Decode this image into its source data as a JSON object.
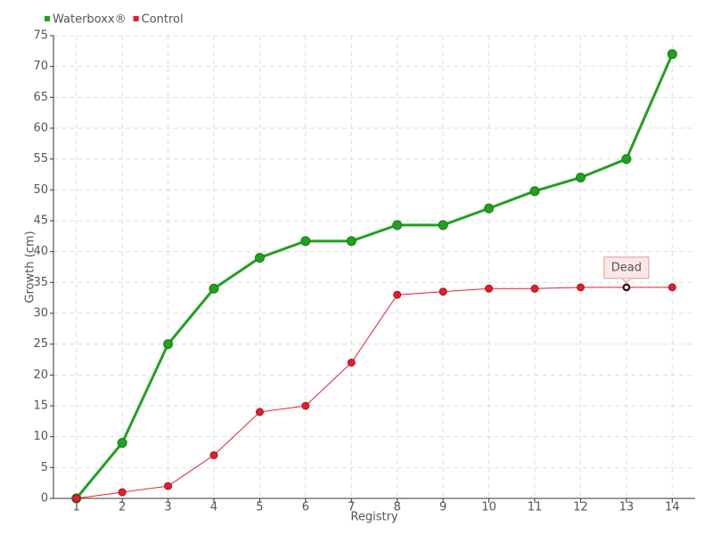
{
  "chart_data": {
    "type": "line",
    "x_label": "Registry",
    "y_label": "Growth (cm)",
    "categories": [
      "1",
      "2",
      "3",
      "4",
      "5",
      "6",
      "7",
      "8",
      "9",
      "10",
      "11",
      "12",
      "13",
      "14"
    ],
    "series": [
      {
        "name": "Waterboxx®",
        "color": "#22a020",
        "values": [
          0,
          9,
          25,
          34,
          39,
          41.7,
          41.7,
          44.3,
          44.3,
          47,
          49.8,
          52,
          55,
          72
        ]
      },
      {
        "name": "Control",
        "color": "#e0202e",
        "values": [
          0,
          1,
          2,
          7,
          14,
          15,
          22,
          33,
          33.5,
          34,
          34,
          34.2,
          34.2,
          34.2
        ]
      }
    ],
    "annotations": [
      {
        "text": "Dead",
        "x": "13",
        "series": "Control"
      }
    ],
    "ylim": [
      0,
      75
    ],
    "yticks": [
      0,
      5,
      10,
      15,
      20,
      25,
      30,
      35,
      40,
      45,
      50,
      55,
      60,
      65,
      70,
      75
    ],
    "grid": true,
    "legend": "top-left"
  }
}
